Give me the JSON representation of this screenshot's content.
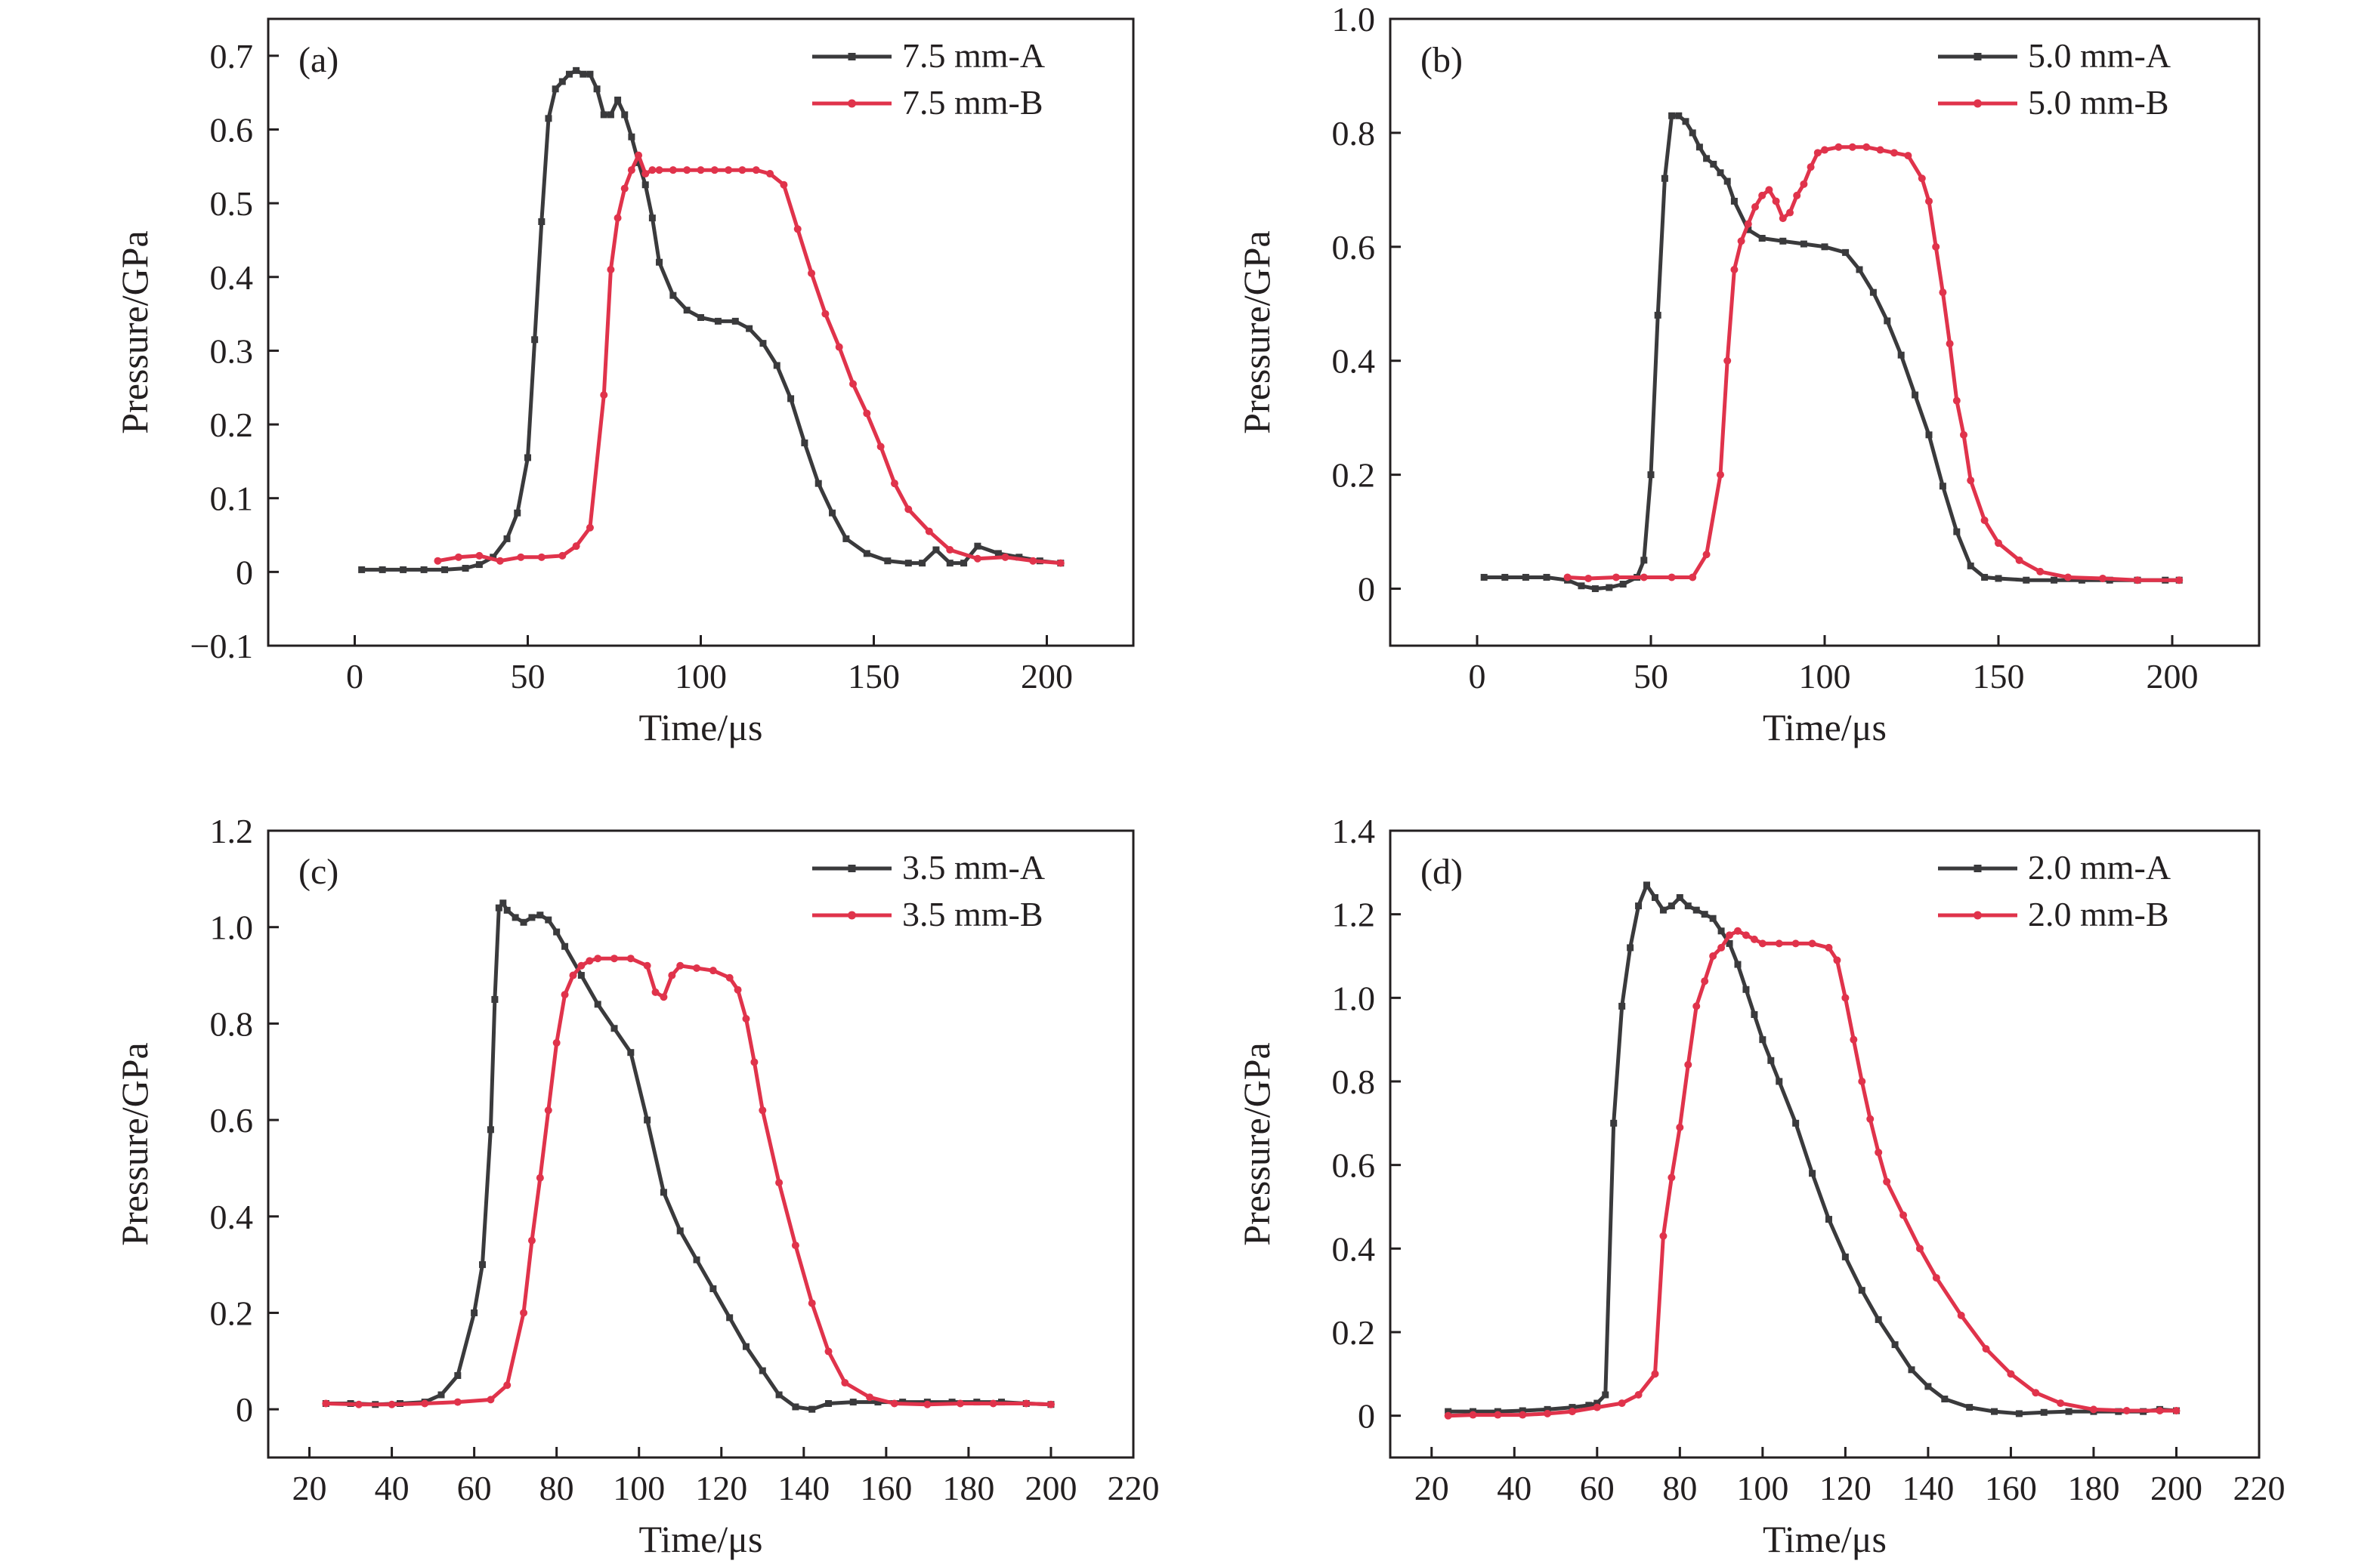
{
  "chart_data": [
    {
      "type": "line",
      "panel_label": "(a)",
      "xlabel": "Time/μs",
      "ylabel": "Pressure/GPa",
      "xlim": [
        -25,
        225
      ],
      "ylim": [
        -0.1,
        0.75
      ],
      "xticks": [
        0,
        50,
        100,
        150,
        200
      ],
      "yticks": [
        -0.1,
        0,
        0.1,
        0.2,
        0.3,
        0.4,
        0.5,
        0.6,
        0.7
      ],
      "ytick_labels": [
        "−0.1",
        "0",
        "0.1",
        "0.2",
        "0.3",
        "0.4",
        "0.5",
        "0.6",
        "0.7"
      ],
      "legend_position": "top-right",
      "series": [
        {
          "name": "7.5 mm-A",
          "color": "#3a3a3c",
          "marker": "square",
          "x": [
            2,
            8,
            14,
            20,
            26,
            32,
            36,
            40,
            44,
            47,
            50,
            52,
            54,
            56,
            58,
            60,
            62,
            64,
            66,
            68,
            70,
            72,
            74,
            76,
            78,
            80,
            82,
            84,
            86,
            88,
            92,
            96,
            100,
            105,
            110,
            114,
            118,
            122,
            126,
            130,
            134,
            138,
            142,
            148,
            154,
            160,
            164,
            168,
            172,
            176,
            180,
            186,
            192,
            198,
            204
          ],
          "y": [
            0.003,
            0.003,
            0.003,
            0.003,
            0.003,
            0.005,
            0.01,
            0.02,
            0.045,
            0.08,
            0.155,
            0.315,
            0.475,
            0.615,
            0.655,
            0.665,
            0.675,
            0.68,
            0.675,
            0.675,
            0.655,
            0.62,
            0.62,
            0.64,
            0.62,
            0.59,
            0.555,
            0.525,
            0.48,
            0.42,
            0.375,
            0.355,
            0.345,
            0.34,
            0.34,
            0.33,
            0.31,
            0.28,
            0.235,
            0.175,
            0.12,
            0.08,
            0.045,
            0.025,
            0.015,
            0.012,
            0.012,
            0.03,
            0.012,
            0.012,
            0.035,
            0.025,
            0.02,
            0.015,
            0.012
          ]
        },
        {
          "name": "7.5 mm-B",
          "color": "#e0334b",
          "marker": "circle",
          "x": [
            24,
            30,
            36,
            42,
            48,
            54,
            60,
            64,
            68,
            72,
            74,
            76,
            78,
            80,
            82,
            84,
            86,
            88,
            92,
            96,
            100,
            104,
            108,
            112,
            116,
            120,
            124,
            128,
            132,
            136,
            140,
            144,
            148,
            152,
            156,
            160,
            166,
            172,
            180,
            188,
            196,
            204
          ],
          "y": [
            0.015,
            0.02,
            0.022,
            0.015,
            0.02,
            0.02,
            0.022,
            0.035,
            0.06,
            0.24,
            0.41,
            0.48,
            0.52,
            0.545,
            0.565,
            0.54,
            0.545,
            0.545,
            0.545,
            0.545,
            0.545,
            0.545,
            0.545,
            0.545,
            0.545,
            0.54,
            0.525,
            0.465,
            0.405,
            0.35,
            0.305,
            0.255,
            0.215,
            0.17,
            0.12,
            0.085,
            0.055,
            0.03,
            0.018,
            0.02,
            0.015,
            0.012
          ]
        }
      ]
    },
    {
      "type": "line",
      "panel_label": "(b)",
      "xlabel": "Time/μs",
      "ylabel": "Pressure/GPa",
      "xlim": [
        -25,
        225
      ],
      "ylim": [
        -0.1,
        1.0
      ],
      "xticks": [
        0,
        50,
        100,
        150,
        200
      ],
      "yticks": [
        0,
        0.2,
        0.4,
        0.6,
        0.8,
        1.0
      ],
      "ytick_labels": [
        "0",
        "0.2",
        "0.4",
        "0.6",
        "0.8",
        "1.0"
      ],
      "legend_position": "top-right",
      "series": [
        {
          "name": "5.0 mm-A",
          "color": "#3a3a3c",
          "marker": "square",
          "x": [
            2,
            8,
            14,
            20,
            26,
            30,
            34,
            38,
            42,
            46,
            48,
            50,
            52,
            54,
            56,
            58,
            60,
            62,
            64,
            66,
            68,
            70,
            72,
            74,
            78,
            82,
            88,
            94,
            100,
            106,
            110,
            114,
            118,
            122,
            126,
            130,
            134,
            138,
            142,
            146,
            150,
            158,
            166,
            174,
            182,
            190,
            198,
            202
          ],
          "y": [
            0.02,
            0.02,
            0.02,
            0.02,
            0.015,
            0.005,
            0.0,
            0.002,
            0.008,
            0.02,
            0.05,
            0.2,
            0.48,
            0.72,
            0.83,
            0.83,
            0.82,
            0.8,
            0.775,
            0.755,
            0.745,
            0.73,
            0.715,
            0.68,
            0.63,
            0.615,
            0.61,
            0.605,
            0.6,
            0.59,
            0.56,
            0.52,
            0.47,
            0.41,
            0.34,
            0.27,
            0.18,
            0.1,
            0.04,
            0.02,
            0.018,
            0.015,
            0.015,
            0.015,
            0.015,
            0.015,
            0.015,
            0.015
          ]
        },
        {
          "name": "5.0 mm-B",
          "color": "#e0334b",
          "marker": "circle",
          "x": [
            26,
            32,
            40,
            48,
            56,
            62,
            66,
            70,
            72,
            74,
            76,
            78,
            80,
            82,
            84,
            86,
            88,
            90,
            92,
            94,
            96,
            98,
            100,
            104,
            108,
            112,
            116,
            120,
            124,
            128,
            130,
            132,
            134,
            136,
            138,
            140,
            142,
            146,
            150,
            156,
            162,
            170,
            180,
            190,
            202
          ],
          "y": [
            0.02,
            0.018,
            0.02,
            0.02,
            0.02,
            0.02,
            0.06,
            0.2,
            0.4,
            0.56,
            0.61,
            0.64,
            0.67,
            0.69,
            0.7,
            0.68,
            0.65,
            0.66,
            0.69,
            0.71,
            0.74,
            0.765,
            0.77,
            0.775,
            0.775,
            0.775,
            0.77,
            0.765,
            0.76,
            0.72,
            0.68,
            0.6,
            0.52,
            0.43,
            0.33,
            0.27,
            0.19,
            0.12,
            0.08,
            0.05,
            0.03,
            0.02,
            0.018,
            0.015,
            0.015
          ]
        }
      ]
    },
    {
      "type": "line",
      "panel_label": "(c)",
      "xlabel": "Time/μs",
      "ylabel": "Pressure/GPa",
      "xlim": [
        10,
        220
      ],
      "ylim": [
        -0.1,
        1.2
      ],
      "xticks": [
        20,
        40,
        60,
        80,
        100,
        120,
        140,
        160,
        180,
        200,
        220
      ],
      "yticks": [
        0,
        0.2,
        0.4,
        0.6,
        0.8,
        1.0,
        1.2
      ],
      "ytick_labels": [
        "0",
        "0.2",
        "0.4",
        "0.6",
        "0.8",
        "1.0",
        "1.2"
      ],
      "legend_position": "top-right",
      "series": [
        {
          "name": "3.5 mm-A",
          "color": "#3a3a3c",
          "marker": "square",
          "x": [
            24,
            30,
            36,
            42,
            48,
            52,
            56,
            60,
            62,
            64,
            65,
            66,
            67,
            68,
            70,
            72,
            74,
            76,
            78,
            80,
            82,
            86,
            90,
            94,
            98,
            102,
            106,
            110,
            114,
            118,
            122,
            126,
            130,
            134,
            138,
            142,
            146,
            152,
            158,
            164,
            170,
            176,
            182,
            188,
            194,
            200
          ],
          "y": [
            0.012,
            0.012,
            0.01,
            0.012,
            0.015,
            0.03,
            0.07,
            0.2,
            0.3,
            0.58,
            0.85,
            1.04,
            1.05,
            1.035,
            1.02,
            1.01,
            1.02,
            1.025,
            1.015,
            0.99,
            0.96,
            0.9,
            0.84,
            0.79,
            0.74,
            0.6,
            0.45,
            0.37,
            0.31,
            0.25,
            0.19,
            0.13,
            0.08,
            0.03,
            0.005,
            0.0,
            0.012,
            0.015,
            0.015,
            0.015,
            0.015,
            0.015,
            0.015,
            0.015,
            0.012,
            0.01
          ]
        },
        {
          "name": "3.5 mm-B",
          "color": "#e0334b",
          "marker": "circle",
          "x": [
            24,
            32,
            40,
            48,
            56,
            64,
            68,
            72,
            74,
            76,
            78,
            80,
            82,
            84,
            86,
            88,
            90,
            94,
            98,
            102,
            104,
            106,
            108,
            110,
            114,
            118,
            122,
            124,
            126,
            128,
            130,
            134,
            138,
            142,
            146,
            150,
            156,
            162,
            170,
            178,
            186,
            194,
            200
          ],
          "y": [
            0.012,
            0.01,
            0.01,
            0.012,
            0.015,
            0.02,
            0.05,
            0.2,
            0.35,
            0.48,
            0.62,
            0.76,
            0.86,
            0.9,
            0.92,
            0.93,
            0.935,
            0.935,
            0.935,
            0.92,
            0.865,
            0.855,
            0.9,
            0.92,
            0.915,
            0.91,
            0.895,
            0.87,
            0.81,
            0.72,
            0.62,
            0.47,
            0.34,
            0.22,
            0.12,
            0.055,
            0.025,
            0.012,
            0.01,
            0.012,
            0.012,
            0.012,
            0.01
          ]
        }
      ]
    },
    {
      "type": "line",
      "panel_label": "(d)",
      "xlabel": "Time/μs",
      "ylabel": "Pressure/GPa",
      "xlim": [
        10,
        220
      ],
      "ylim": [
        -0.1,
        1.4
      ],
      "xticks": [
        20,
        40,
        60,
        80,
        100,
        120,
        140,
        160,
        180,
        200,
        220
      ],
      "yticks": [
        0,
        0.2,
        0.4,
        0.6,
        0.8,
        1.0,
        1.2,
        1.4
      ],
      "ytick_labels": [
        "0",
        "0.2",
        "0.4",
        "0.6",
        "0.8",
        "1.0",
        "1.2",
        "1.4"
      ],
      "legend_position": "top-right",
      "series": [
        {
          "name": "2.0 mm-A",
          "color": "#3a3a3c",
          "marker": "square",
          "x": [
            24,
            30,
            36,
            42,
            48,
            54,
            58,
            60,
            62,
            64,
            66,
            68,
            70,
            72,
            74,
            76,
            78,
            80,
            82,
            84,
            86,
            88,
            90,
            92,
            94,
            96,
            98,
            100,
            102,
            104,
            108,
            112,
            116,
            120,
            124,
            128,
            132,
            136,
            140,
            144,
            150,
            156,
            162,
            168,
            174,
            180,
            186,
            192,
            196,
            200
          ],
          "y": [
            0.01,
            0.01,
            0.01,
            0.012,
            0.015,
            0.02,
            0.025,
            0.03,
            0.05,
            0.7,
            0.98,
            1.12,
            1.22,
            1.27,
            1.24,
            1.21,
            1.22,
            1.24,
            1.22,
            1.21,
            1.2,
            1.19,
            1.16,
            1.13,
            1.08,
            1.02,
            0.96,
            0.9,
            0.85,
            0.8,
            0.7,
            0.58,
            0.47,
            0.38,
            0.3,
            0.23,
            0.17,
            0.11,
            0.07,
            0.04,
            0.02,
            0.01,
            0.005,
            0.008,
            0.01,
            0.01,
            0.01,
            0.01,
            0.015,
            0.012
          ]
        },
        {
          "name": "2.0 mm-B",
          "color": "#e0334b",
          "marker": "circle",
          "x": [
            24,
            30,
            36,
            42,
            48,
            54,
            60,
            66,
            70,
            74,
            76,
            78,
            80,
            82,
            84,
            86,
            88,
            90,
            92,
            94,
            96,
            98,
            100,
            104,
            108,
            112,
            116,
            118,
            120,
            122,
            124,
            126,
            128,
            130,
            134,
            138,
            142,
            148,
            154,
            160,
            166,
            172,
            180,
            188,
            196,
            200
          ],
          "y": [
            0.0,
            0.002,
            0.002,
            0.002,
            0.005,
            0.01,
            0.02,
            0.03,
            0.05,
            0.1,
            0.43,
            0.57,
            0.69,
            0.84,
            0.98,
            1.04,
            1.1,
            1.12,
            1.15,
            1.16,
            1.15,
            1.14,
            1.13,
            1.13,
            1.13,
            1.13,
            1.12,
            1.09,
            1.0,
            0.9,
            0.8,
            0.71,
            0.63,
            0.56,
            0.48,
            0.4,
            0.33,
            0.24,
            0.16,
            0.1,
            0.055,
            0.03,
            0.015,
            0.012,
            0.012,
            0.012
          ]
        }
      ]
    }
  ]
}
